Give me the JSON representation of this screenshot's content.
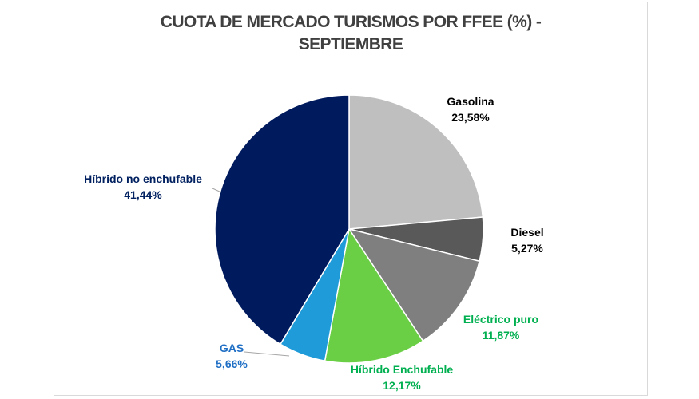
{
  "chart_data": {
    "type": "pie",
    "title": [
      "CUOTA DE MERCADO TURISMOS POR FFEE (%)  -",
      "SEPTIEMBRE"
    ],
    "start_angle_deg": 0,
    "direction": "clockwise",
    "slices": [
      {
        "label": "Gasolina",
        "value": 23.58,
        "display": "23,58%",
        "color": "#bfbfbf",
        "label_color": "#000000"
      },
      {
        "label": "Diesel",
        "value": 5.27,
        "display": "5,27%",
        "color": "#595959",
        "label_color": "#000000"
      },
      {
        "label": "Eléctrico puro",
        "value": 11.87,
        "display": "11,87%",
        "color": "#7f7f7f",
        "label_color": "#00b050"
      },
      {
        "label": "Híbrido Enchufable",
        "value": 12.17,
        "display": "12,17%",
        "color": "#6acf45",
        "label_color": "#00b050"
      },
      {
        "label": "GAS",
        "value": 5.66,
        "display": "5,66%",
        "color": "#209bd9",
        "label_color": "#1f6fc5"
      },
      {
        "label": "Híbrido no enchufable",
        "value": 41.44,
        "display": "41,44%",
        "color": "#001a5e",
        "label_color": "#002060"
      }
    ],
    "legend": "none"
  }
}
